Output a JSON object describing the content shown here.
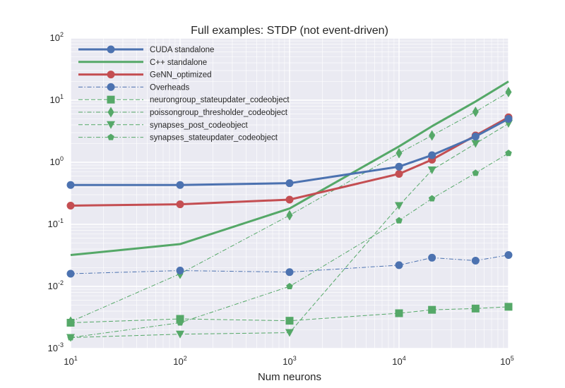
{
  "chart_data": {
    "type": "line",
    "title": "Full examples: STDP (not event-driven)",
    "xlabel": "Num neurons",
    "ylabel": "",
    "xscale": "log",
    "yscale": "log",
    "xlim": [
      10,
      100000
    ],
    "ylim": [
      0.001,
      100
    ],
    "grid": true,
    "legend_position": "top-left",
    "x_ticks": [
      {
        "base": "10",
        "exp": "1",
        "value": 10
      },
      {
        "base": "10",
        "exp": "2",
        "value": 100
      },
      {
        "base": "10",
        "exp": "3",
        "value": 1000
      },
      {
        "base": "10",
        "exp": "4",
        "value": 10000
      },
      {
        "base": "10",
        "exp": "5",
        "value": 100000
      }
    ],
    "y_ticks": [
      {
        "base": "10",
        "exp": "-3",
        "value": 0.001
      },
      {
        "base": "10",
        "exp": "-2",
        "value": 0.01
      },
      {
        "base": "10",
        "exp": "-1",
        "value": 0.1
      },
      {
        "base": "10",
        "exp": "0",
        "value": 1
      },
      {
        "base": "10",
        "exp": "1",
        "value": 10
      },
      {
        "base": "10",
        "exp": "2",
        "value": 100
      }
    ],
    "series": [
      {
        "name": "CUDA standalone",
        "color": "#4c72b0",
        "style": "solid",
        "width": 3,
        "marker": "circle",
        "points": [
          [
            10,
            0.43
          ],
          [
            100,
            0.43
          ],
          [
            1000,
            0.46
          ],
          [
            10000,
            0.85
          ],
          [
            20000,
            1.3
          ],
          [
            50000,
            2.6
          ],
          [
            100000,
            5.0
          ]
        ]
      },
      {
        "name": "C++ standalone",
        "color": "#55a868",
        "style": "solid",
        "width": 3,
        "marker": "none",
        "points": [
          [
            10,
            0.032
          ],
          [
            100,
            0.048
          ],
          [
            1000,
            0.18
          ],
          [
            10000,
            1.8
          ],
          [
            20000,
            3.8
          ],
          [
            50000,
            9.5
          ],
          [
            100000,
            20
          ]
        ]
      },
      {
        "name": "GeNN_optimized",
        "color": "#c44e52",
        "style": "solid",
        "width": 3,
        "marker": "circle",
        "points": [
          [
            10,
            0.2
          ],
          [
            100,
            0.21
          ],
          [
            1000,
            0.25
          ],
          [
            10000,
            0.65
          ],
          [
            20000,
            1.1
          ],
          [
            50000,
            2.7
          ],
          [
            100000,
            5.3
          ]
        ]
      },
      {
        "name": "Overheads",
        "color": "#4c72b0",
        "style": "dashdot",
        "width": 1,
        "marker": "circle",
        "points": [
          [
            10,
            0.016
          ],
          [
            100,
            0.018
          ],
          [
            1000,
            0.017
          ],
          [
            10000,
            0.022
          ],
          [
            20000,
            0.029
          ],
          [
            50000,
            0.026
          ],
          [
            100000,
            0.032
          ]
        ]
      },
      {
        "name": "neurongroup_stateupdater_codeobject",
        "color": "#55a868",
        "style": "dashed",
        "width": 1,
        "marker": "square",
        "points": [
          [
            10,
            0.0026
          ],
          [
            100,
            0.003
          ],
          [
            1000,
            0.0028
          ],
          [
            10000,
            0.0037
          ],
          [
            20000,
            0.0042
          ],
          [
            50000,
            0.0044
          ],
          [
            100000,
            0.0047
          ]
        ]
      },
      {
        "name": "poissongroup_thresholder_codeobject",
        "color": "#55a868",
        "style": "dashdot",
        "width": 1,
        "marker": "diamond",
        "points": [
          [
            10,
            0.0027
          ],
          [
            100,
            0.016
          ],
          [
            1000,
            0.14
          ],
          [
            10000,
            1.4
          ],
          [
            20000,
            2.7
          ],
          [
            50000,
            6.5
          ],
          [
            100000,
            13.5
          ]
        ]
      },
      {
        "name": "synapses_post_codeobject",
        "color": "#55a868",
        "style": "dashed",
        "width": 1,
        "marker": "triangle-down",
        "points": [
          [
            10,
            0.0015
          ],
          [
            100,
            0.0017
          ],
          [
            1000,
            0.0018
          ],
          [
            10000,
            0.2
          ],
          [
            20000,
            0.75
          ],
          [
            50000,
            2.0
          ],
          [
            100000,
            4.2
          ]
        ]
      },
      {
        "name": "synapses_stateupdater_codeobject",
        "color": "#55a868",
        "style": "dashdot",
        "width": 1,
        "marker": "pentagon",
        "points": [
          [
            10,
            0.0015
          ],
          [
            100,
            0.0026
          ],
          [
            1000,
            0.01
          ],
          [
            10000,
            0.115
          ],
          [
            20000,
            0.26
          ],
          [
            50000,
            0.67
          ],
          [
            100000,
            1.4
          ]
        ]
      }
    ]
  }
}
